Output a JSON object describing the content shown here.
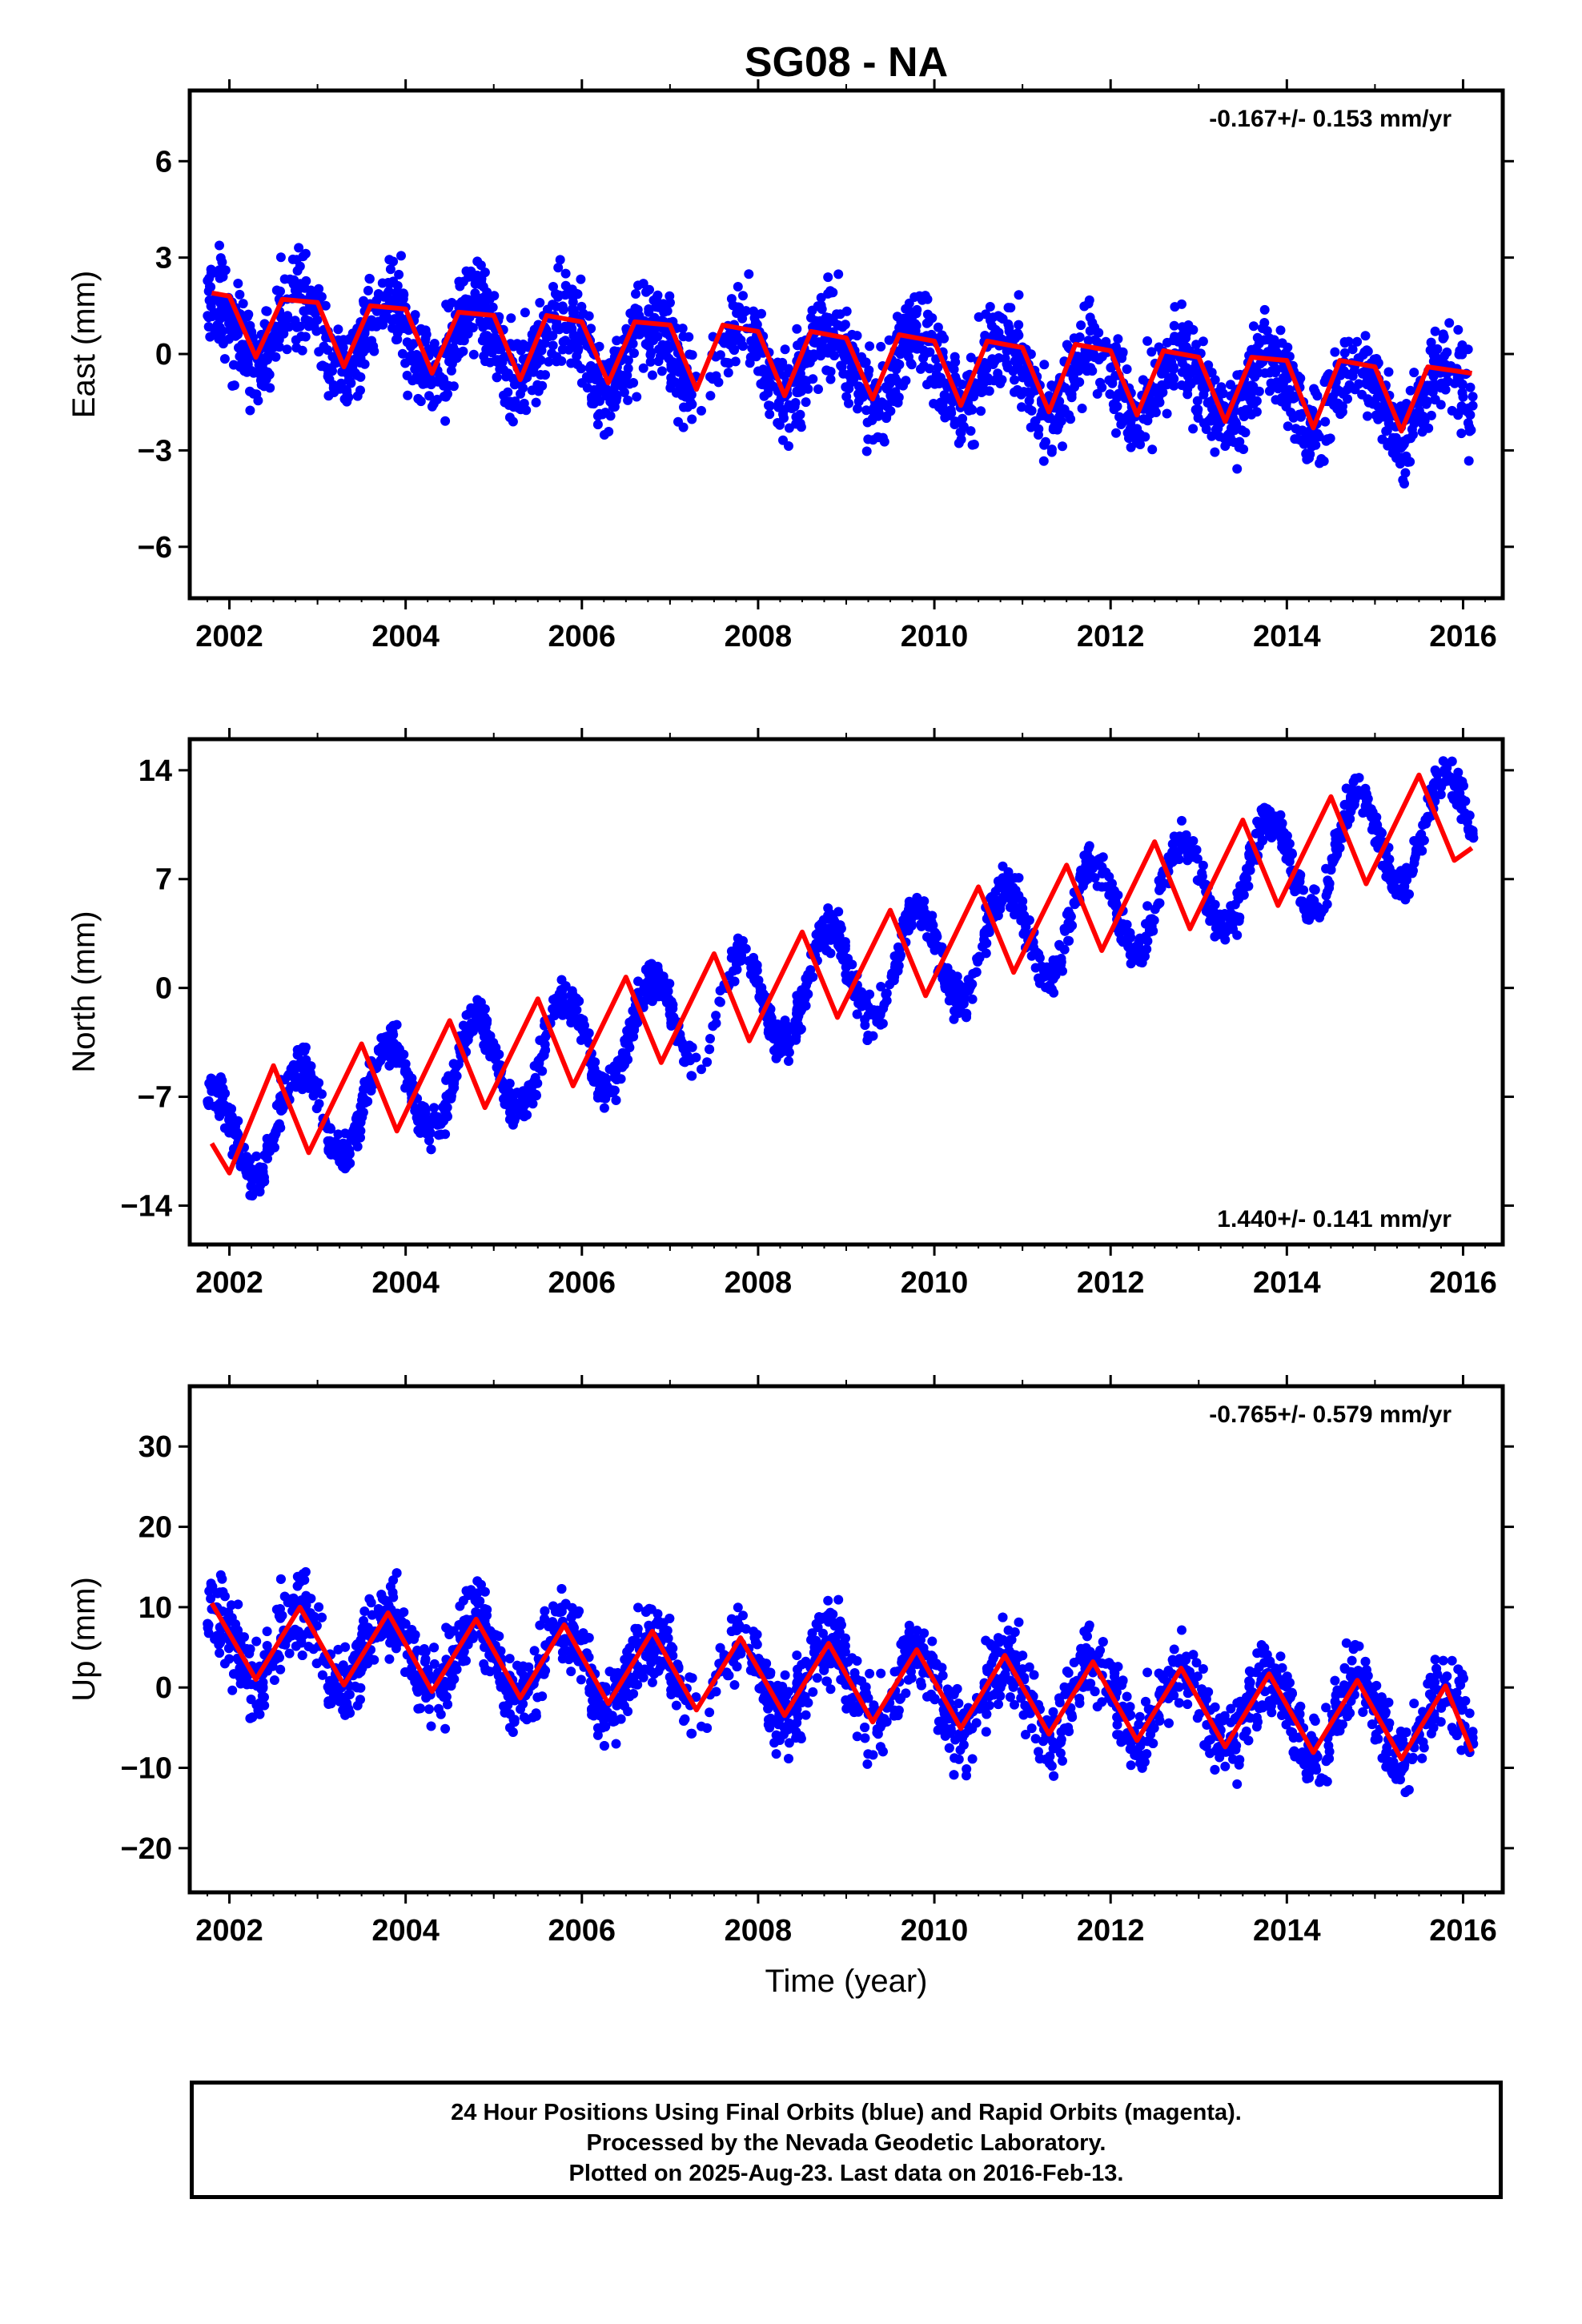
{
  "chart_data": {
    "type": "scatter",
    "title": "SG08 - NA",
    "xlabel": "Time (year)",
    "x_ticks": [
      2002,
      2004,
      2006,
      2008,
      2010,
      2012,
      2014,
      2016
    ],
    "xlim": [
      2001.55,
      2016.45
    ],
    "data_span": [
      2001.75,
      2016.12
    ],
    "point_color": "#0000ff",
    "fit_color": "#ff0000",
    "panels": [
      {
        "name": "east",
        "ylabel": "East (mm)",
        "ylim": [
          -7.6,
          8.2
        ],
        "y_ticks": [
          -6,
          -3,
          0,
          3,
          6
        ],
        "rate_text": "-0.167+/- 0.153 mm/yr",
        "rate_position": "top-right",
        "rate_mm_per_yr": -0.167,
        "annual_amplitude_mm": 1.1,
        "offset_mm": 0.85,
        "scatter_mm": 1.3,
        "fit_curve": [
          [
            2001.8,
            1.9
          ],
          [
            2002.0,
            1.8
          ],
          [
            2002.3,
            -0.1
          ],
          [
            2002.6,
            1.7
          ],
          [
            2003.0,
            1.6
          ],
          [
            2003.3,
            -0.4
          ],
          [
            2003.6,
            1.5
          ],
          [
            2004.0,
            1.4
          ],
          [
            2004.3,
            -0.6
          ],
          [
            2004.6,
            1.3
          ],
          [
            2005.0,
            1.2
          ],
          [
            2005.3,
            -0.8
          ],
          [
            2005.6,
            1.2
          ],
          [
            2006.0,
            1.0
          ],
          [
            2006.3,
            -0.9
          ],
          [
            2006.6,
            1.0
          ],
          [
            2007.0,
            0.9
          ],
          [
            2007.3,
            -1.1
          ],
          [
            2007.6,
            0.9
          ],
          [
            2008.0,
            0.7
          ],
          [
            2008.3,
            -1.3
          ],
          [
            2008.6,
            0.7
          ],
          [
            2009.0,
            0.5
          ],
          [
            2009.3,
            -1.4
          ],
          [
            2009.6,
            0.6
          ],
          [
            2010.0,
            0.4
          ],
          [
            2010.3,
            -1.6
          ],
          [
            2010.6,
            0.4
          ],
          [
            2011.0,
            0.2
          ],
          [
            2011.3,
            -1.8
          ],
          [
            2011.6,
            0.3
          ],
          [
            2012.0,
            0.1
          ],
          [
            2012.3,
            -1.9
          ],
          [
            2012.6,
            0.1
          ],
          [
            2013.0,
            -0.1
          ],
          [
            2013.3,
            -2.1
          ],
          [
            2013.6,
            -0.1
          ],
          [
            2014.0,
            -0.2
          ],
          [
            2014.3,
            -2.3
          ],
          [
            2014.6,
            -0.2
          ],
          [
            2015.0,
            -0.4
          ],
          [
            2015.3,
            -2.4
          ],
          [
            2015.6,
            -0.4
          ],
          [
            2016.1,
            -0.6
          ]
        ]
      },
      {
        "name": "north",
        "ylabel": "North (mm)",
        "ylim": [
          -16.5,
          16.0
        ],
        "y_ticks": [
          -14,
          -7,
          0,
          7,
          14
        ],
        "rate_text": "1.440+/- 0.141 mm/yr",
        "rate_position": "bottom-right",
        "rate_mm_per_yr": 1.44,
        "annual_amplitude_mm": 3.2,
        "offset_mm": -9.7,
        "scatter_mm": 1.2,
        "fit_curve": [
          [
            2001.8,
            -10.0
          ],
          [
            2002.0,
            -11.9
          ],
          [
            2002.5,
            -5.0
          ],
          [
            2002.9,
            -10.6
          ],
          [
            2003.5,
            -3.6
          ],
          [
            2003.9,
            -9.2
          ],
          [
            2004.5,
            -2.1
          ],
          [
            2004.9,
            -7.7
          ],
          [
            2005.5,
            -0.7
          ],
          [
            2005.9,
            -6.3
          ],
          [
            2006.5,
            0.7
          ],
          [
            2006.9,
            -4.8
          ],
          [
            2007.5,
            2.2
          ],
          [
            2007.9,
            -3.4
          ],
          [
            2008.5,
            3.6
          ],
          [
            2008.9,
            -1.9
          ],
          [
            2009.5,
            5.0
          ],
          [
            2009.9,
            -0.5
          ],
          [
            2010.5,
            6.5
          ],
          [
            2010.9,
            1.0
          ],
          [
            2011.5,
            7.9
          ],
          [
            2011.9,
            2.4
          ],
          [
            2012.5,
            9.4
          ],
          [
            2012.9,
            3.8
          ],
          [
            2013.5,
            10.8
          ],
          [
            2013.9,
            5.3
          ],
          [
            2014.5,
            12.3
          ],
          [
            2014.9,
            6.7
          ],
          [
            2015.5,
            13.7
          ],
          [
            2015.9,
            8.2
          ],
          [
            2016.1,
            9.0
          ]
        ]
      },
      {
        "name": "up",
        "ylabel": "Up (mm)",
        "ylim": [
          -25.5,
          37.5
        ],
        "y_ticks": [
          -20,
          -10,
          0,
          10,
          20,
          30
        ],
        "rate_text": "-0.765+/- 0.579 mm/yr",
        "rate_position": "top-right",
        "rate_mm_per_yr": -0.765,
        "annual_amplitude_mm": 4.6,
        "offset_mm": 6.0,
        "scatter_mm": 4.5,
        "fit_curve": [
          [
            2001.8,
            10.5
          ],
          [
            2002.3,
            1.0
          ],
          [
            2002.8,
            10.0
          ],
          [
            2003.3,
            0.3
          ],
          [
            2003.8,
            9.3
          ],
          [
            2004.3,
            -0.5
          ],
          [
            2004.8,
            8.5
          ],
          [
            2005.3,
            -1.3
          ],
          [
            2005.8,
            7.8
          ],
          [
            2006.3,
            -2.0
          ],
          [
            2006.8,
            7.0
          ],
          [
            2007.3,
            -2.8
          ],
          [
            2007.8,
            6.2
          ],
          [
            2008.3,
            -3.5
          ],
          [
            2008.8,
            5.5
          ],
          [
            2009.3,
            -4.3
          ],
          [
            2009.8,
            4.7
          ],
          [
            2010.3,
            -5.1
          ],
          [
            2010.8,
            4.0
          ],
          [
            2011.3,
            -5.8
          ],
          [
            2011.8,
            3.2
          ],
          [
            2012.3,
            -6.6
          ],
          [
            2012.8,
            2.4
          ],
          [
            2013.3,
            -7.4
          ],
          [
            2013.8,
            1.7
          ],
          [
            2014.3,
            -8.1
          ],
          [
            2014.8,
            0.9
          ],
          [
            2015.3,
            -8.9
          ],
          [
            2015.8,
            0.2
          ],
          [
            2016.1,
            -8.0
          ]
        ]
      }
    ]
  },
  "footer": {
    "line1": "24 Hour Positions Using Final Orbits (blue) and Rapid Orbits (magenta).",
    "line2": "Processed by the Nevada Geodetic Laboratory.",
    "line3": "Plotted on 2025-Aug-23. Last data on 2016-Feb-13."
  }
}
